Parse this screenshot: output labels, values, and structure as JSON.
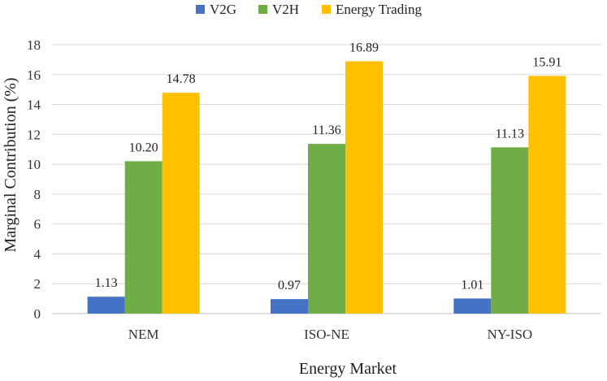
{
  "chart_data": {
    "type": "bar",
    "title": "",
    "xlabel": "Energy Market",
    "ylabel": "Marginal Contribution (%)",
    "ylim": [
      0,
      18
    ],
    "yticks": [
      0,
      2,
      4,
      6,
      8,
      10,
      12,
      14,
      16,
      18
    ],
    "grid": true,
    "legend_position": "top",
    "categories": [
      "NEM",
      "ISO-NE",
      "NY-ISO"
    ],
    "series": [
      {
        "name": "V2G",
        "color": "#4472C4",
        "values": [
          1.13,
          0.97,
          1.01
        ],
        "labels": [
          "1.13",
          "0.97",
          "1.01"
        ]
      },
      {
        "name": "V2H",
        "color": "#70AD47",
        "values": [
          10.2,
          11.36,
          11.13
        ],
        "labels": [
          "10.20",
          "11.36",
          "11.13"
        ]
      },
      {
        "name": "Energy Trading",
        "color": "#FFC000",
        "values": [
          14.78,
          16.89,
          15.91
        ],
        "labels": [
          "14.78",
          "16.89",
          "15.91"
        ]
      }
    ]
  }
}
